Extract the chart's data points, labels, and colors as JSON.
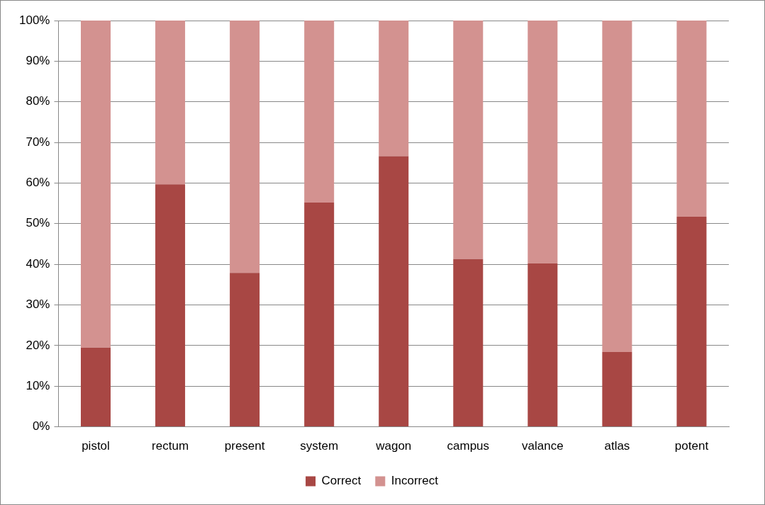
{
  "chart_data": {
    "type": "bar",
    "stacked": true,
    "categories": [
      "pistol",
      "rectum",
      "present",
      "system",
      "wagon",
      "campus",
      "valance",
      "atlas",
      "potent"
    ],
    "series": [
      {
        "name": "Correct",
        "color": "#a84744",
        "values": [
          19.5,
          59.7,
          37.9,
          55.2,
          66.6,
          41.3,
          40.2,
          18.4,
          51.7
        ]
      },
      {
        "name": "Incorrect",
        "color": "#d39290",
        "values": [
          80.5,
          40.3,
          62.1,
          44.8,
          33.4,
          58.7,
          59.8,
          81.6,
          48.3
        ]
      }
    ],
    "ylim": [
      0,
      100
    ],
    "yticks": [
      {
        "value": 0,
        "label": "0%"
      },
      {
        "value": 10,
        "label": "10%"
      },
      {
        "value": 20,
        "label": "20%"
      },
      {
        "value": 30,
        "label": "30%"
      },
      {
        "value": 40,
        "label": "40%"
      },
      {
        "value": 50,
        "label": "50%"
      },
      {
        "value": 60,
        "label": "60%"
      },
      {
        "value": 70,
        "label": "70%"
      },
      {
        "value": 80,
        "label": "80%"
      },
      {
        "value": 90,
        "label": "90%"
      },
      {
        "value": 100,
        "label": "100%"
      }
    ],
    "grid": "y",
    "legend": "bottom"
  }
}
